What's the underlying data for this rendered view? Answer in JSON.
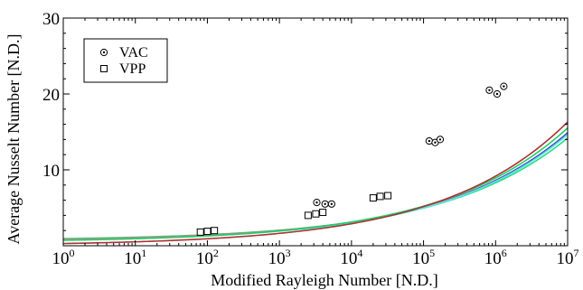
{
  "chart_data": {
    "type": "scatter",
    "title": "",
    "xlabel": "Modified Rayleigh Number [N.D.]",
    "ylabel": "Average Nusselt Number [N.D.]",
    "xscale": "log",
    "xlim": [
      1,
      10000000
    ],
    "ylim": [
      0,
      30
    ],
    "x_ticks": [
      {
        "base": "10",
        "exp": "0",
        "value": 1
      },
      {
        "base": "10",
        "exp": "1",
        "value": 10
      },
      {
        "base": "10",
        "exp": "2",
        "value": 100
      },
      {
        "base": "10",
        "exp": "3",
        "value": 1000
      },
      {
        "base": "10",
        "exp": "4",
        "value": 10000
      },
      {
        "base": "10",
        "exp": "5",
        "value": 100000
      },
      {
        "base": "10",
        "exp": "6",
        "value": 1000000
      },
      {
        "base": "10",
        "exp": "7",
        "value": 10000000
      }
    ],
    "y_ticks": [
      {
        "label": "10",
        "value": 10
      },
      {
        "label": "20",
        "value": 20
      },
      {
        "label": "30",
        "value": 30
      }
    ],
    "grid": false,
    "legend_position": "top-left",
    "series": [
      {
        "name": "VAC",
        "marker": "circle-dot",
        "points": [
          {
            "x": 3300,
            "y": 5.7
          },
          {
            "x": 4300,
            "y": 5.5
          },
          {
            "x": 5300,
            "y": 5.5
          },
          {
            "x": 120000,
            "y": 13.8
          },
          {
            "x": 145000,
            "y": 13.6
          },
          {
            "x": 170000,
            "y": 14.0
          },
          {
            "x": 820000,
            "y": 20.5
          },
          {
            "x": 1050000,
            "y": 20.0
          },
          {
            "x": 1300000,
            "y": 21.0
          }
        ]
      },
      {
        "name": "VPP",
        "marker": "square",
        "points": [
          {
            "x": 80,
            "y": 1.8
          },
          {
            "x": 100,
            "y": 1.9
          },
          {
            "x": 125,
            "y": 2.0
          },
          {
            "x": 2500,
            "y": 4.0
          },
          {
            "x": 3200,
            "y": 4.2
          },
          {
            "x": 4000,
            "y": 4.4
          },
          {
            "x": 20000,
            "y": 6.3
          },
          {
            "x": 25000,
            "y": 6.5
          },
          {
            "x": 32000,
            "y": 6.6
          }
        ]
      }
    ],
    "curves": [
      {
        "color": "#22dd88",
        "a": 0.7,
        "b": 0.24
      },
      {
        "color": "#3344cc",
        "a": 0.55,
        "b": 0.255
      },
      {
        "color": "#ee6666",
        "a": 0.6,
        "b": 0.25
      },
      {
        "color": "#55e8e8",
        "a": 0.5,
        "b": 0.252
      },
      {
        "color": "#22cc66",
        "a": 0.45,
        "b": 0.268
      },
      {
        "color": "#aa3333",
        "a": 0.0,
        "b": 0.29,
        "from": 1
      }
    ]
  }
}
